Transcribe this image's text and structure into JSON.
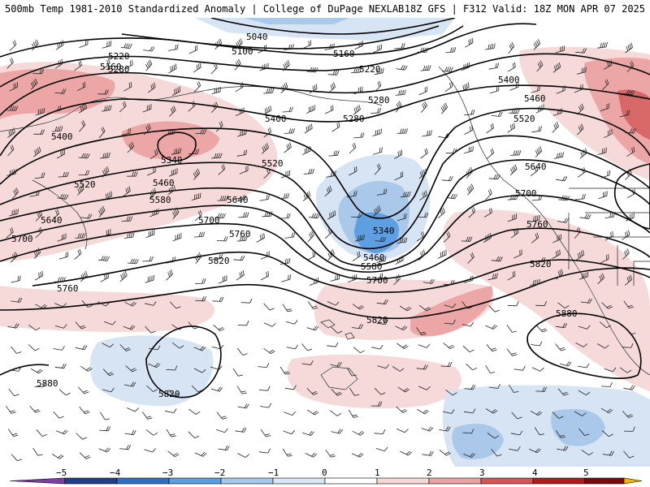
{
  "header": {
    "left": "500mb Temp 1981-2010 Standardized Anomaly | College of DuPage NEXLAB",
    "right": "18Z GFS | F312 Valid: 18Z MON APR 07 2025"
  },
  "contours": [
    {
      "value": "5040"
    },
    {
      "value": "5100"
    },
    {
      "value": "5160"
    },
    {
      "value": "5160"
    },
    {
      "value": "5220"
    },
    {
      "value": "5220"
    },
    {
      "value": "5280"
    },
    {
      "value": "5280"
    },
    {
      "value": "5280"
    },
    {
      "value": "5340"
    },
    {
      "value": "5340"
    },
    {
      "value": "5400"
    },
    {
      "value": "5400"
    },
    {
      "value": "5400"
    },
    {
      "value": "5460"
    },
    {
      "value": "5460"
    },
    {
      "value": "5460"
    },
    {
      "value": "5520"
    },
    {
      "value": "5520"
    },
    {
      "value": "5520"
    },
    {
      "value": "5580"
    },
    {
      "value": "5580"
    },
    {
      "value": "5640"
    },
    {
      "value": "5640"
    },
    {
      "value": "5640"
    },
    {
      "value": "5700"
    },
    {
      "value": "5700"
    },
    {
      "value": "5700"
    },
    {
      "value": "5700"
    },
    {
      "value": "5760"
    },
    {
      "value": "5760"
    },
    {
      "value": "5760"
    },
    {
      "value": "5820"
    },
    {
      "value": "5820"
    },
    {
      "value": "5820"
    },
    {
      "value": "5820"
    },
    {
      "value": "5880"
    },
    {
      "value": "5880"
    }
  ],
  "colorbar": {
    "ticks": [
      "−5",
      "−4",
      "−3",
      "−2",
      "−1",
      "0",
      "1",
      "2",
      "3",
      "4",
      "5"
    ],
    "colors": [
      "#7b3fa0",
      "#1f3f8a",
      "#2e6fc4",
      "#5a9fe0",
      "#a4c8ee",
      "#d8e6f6",
      "#ffffff",
      "#f6d6d6",
      "#eaa4a4",
      "#d55454",
      "#b01c1c",
      "#7a0a0a",
      "#f2b400"
    ]
  },
  "palette": {
    "blue_light": "#d6e4f3",
    "blue_mid": "#a9c8ea",
    "blue_dark": "#5d9fe0",
    "red_light": "#f6d9d9",
    "red_mid": "#eda6a6",
    "red_dark": "#d86868"
  }
}
